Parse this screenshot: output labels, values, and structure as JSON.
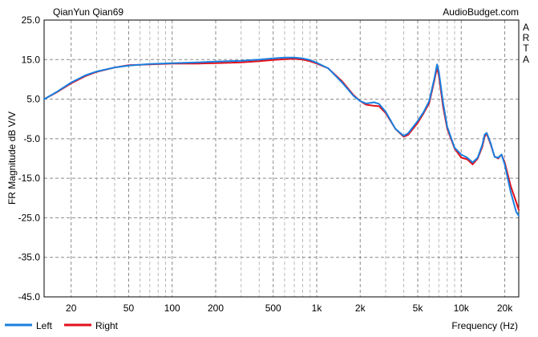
{
  "header": {
    "title": "QianYun Qian69",
    "brand": "AudioBudget.com"
  },
  "side_label": [
    "A",
    "R",
    "T",
    "A"
  ],
  "chart_data": {
    "type": "line",
    "title": "QianYun Qian69",
    "xlabel": "Frequency (Hz)",
    "ylabel": "FR Magnitude dB V/V",
    "x_scale": "log",
    "xlim": [
      13,
      25000
    ],
    "ylim": [
      -45,
      25
    ],
    "x_ticks": [
      {
        "value": 20,
        "label": "20"
      },
      {
        "value": 50,
        "label": "50"
      },
      {
        "value": 100,
        "label": "100"
      },
      {
        "value": 200,
        "label": "200"
      },
      {
        "value": 500,
        "label": "500"
      },
      {
        "value": 1000,
        "label": "1k"
      },
      {
        "value": 2000,
        "label": "2k"
      },
      {
        "value": 5000,
        "label": "5k"
      },
      {
        "value": 10000,
        "label": "10k"
      },
      {
        "value": 20000,
        "label": "20k"
      }
    ],
    "y_ticks": [
      {
        "value": 25,
        "label": "25.0"
      },
      {
        "value": 15,
        "label": "15.0"
      },
      {
        "value": 5,
        "label": "5.0"
      },
      {
        "value": -5,
        "label": "-5.0"
      },
      {
        "value": -15,
        "label": "-15.0"
      },
      {
        "value": -25,
        "label": "-25.0"
      },
      {
        "value": -35,
        "label": "-35.0"
      },
      {
        "value": -45,
        "label": "-45.0"
      }
    ],
    "grid": true,
    "legend_position": "bottom-left",
    "series": [
      {
        "name": "Right",
        "color": "#e0101c",
        "points": [
          [
            13,
            5.0
          ],
          [
            16,
            6.8
          ],
          [
            20,
            9.0
          ],
          [
            25,
            10.8
          ],
          [
            30,
            11.9
          ],
          [
            40,
            13.0
          ],
          [
            50,
            13.6
          ],
          [
            70,
            13.8
          ],
          [
            100,
            14.0
          ],
          [
            150,
            14.0
          ],
          [
            200,
            14.1
          ],
          [
            300,
            14.3
          ],
          [
            400,
            14.6
          ],
          [
            500,
            14.9
          ],
          [
            600,
            15.1
          ],
          [
            700,
            15.2
          ],
          [
            800,
            15.0
          ],
          [
            900,
            14.6
          ],
          [
            1000,
            14.0
          ],
          [
            1200,
            12.8
          ],
          [
            1500,
            9.5
          ],
          [
            1800,
            6.0
          ],
          [
            2000,
            4.5
          ],
          [
            2200,
            3.6
          ],
          [
            2500,
            3.3
          ],
          [
            2700,
            3.2
          ],
          [
            3000,
            1.5
          ],
          [
            3500,
            -2.5
          ],
          [
            4000,
            -4.5
          ],
          [
            4300,
            -4.0
          ],
          [
            5000,
            -1.0
          ],
          [
            5500,
            1.5
          ],
          [
            6000,
            4.0
          ],
          [
            6500,
            9.5
          ],
          [
            6800,
            13.0
          ],
          [
            7000,
            11.0
          ],
          [
            7500,
            3.0
          ],
          [
            8000,
            -2.5
          ],
          [
            9000,
            -7.5
          ],
          [
            10000,
            -9.8
          ],
          [
            11000,
            -10.2
          ],
          [
            12000,
            -11.5
          ],
          [
            13000,
            -10.0
          ],
          [
            14000,
            -7.0
          ],
          [
            14500,
            -4.5
          ],
          [
            15000,
            -3.7
          ],
          [
            16000,
            -6.5
          ],
          [
            17000,
            -9.5
          ],
          [
            18000,
            -10.0
          ],
          [
            19000,
            -9.0
          ],
          [
            20000,
            -11.0
          ],
          [
            22000,
            -17.0
          ],
          [
            24000,
            -21.0
          ],
          [
            25000,
            -23.0
          ]
        ]
      },
      {
        "name": "Left",
        "color": "#1a7fe0",
        "points": [
          [
            13,
            5.0
          ],
          [
            16,
            6.9
          ],
          [
            20,
            9.2
          ],
          [
            25,
            11.0
          ],
          [
            30,
            12.0
          ],
          [
            40,
            13.0
          ],
          [
            50,
            13.5
          ],
          [
            70,
            13.9
          ],
          [
            100,
            14.1
          ],
          [
            150,
            14.3
          ],
          [
            200,
            14.5
          ],
          [
            300,
            14.7
          ],
          [
            400,
            15.0
          ],
          [
            500,
            15.3
          ],
          [
            600,
            15.5
          ],
          [
            700,
            15.5
          ],
          [
            800,
            15.3
          ],
          [
            900,
            14.9
          ],
          [
            1000,
            14.2
          ],
          [
            1200,
            12.8
          ],
          [
            1500,
            9.2
          ],
          [
            1800,
            5.8
          ],
          [
            2000,
            4.5
          ],
          [
            2200,
            3.9
          ],
          [
            2500,
            4.2
          ],
          [
            2700,
            3.8
          ],
          [
            3000,
            1.8
          ],
          [
            3500,
            -2.5
          ],
          [
            4000,
            -4.3
          ],
          [
            4300,
            -3.6
          ],
          [
            5000,
            -0.5
          ],
          [
            5500,
            1.8
          ],
          [
            6000,
            4.5
          ],
          [
            6500,
            10.0
          ],
          [
            6800,
            13.8
          ],
          [
            7000,
            12.0
          ],
          [
            7500,
            4.0
          ],
          [
            8000,
            -2.0
          ],
          [
            9000,
            -7.3
          ],
          [
            10000,
            -9.0
          ],
          [
            11000,
            -9.8
          ],
          [
            12000,
            -11.0
          ],
          [
            13000,
            -9.8
          ],
          [
            14000,
            -6.5
          ],
          [
            14500,
            -4.0
          ],
          [
            15000,
            -3.5
          ],
          [
            16000,
            -6.2
          ],
          [
            17000,
            -9.6
          ],
          [
            18000,
            -9.8
          ],
          [
            19000,
            -9.0
          ],
          [
            20000,
            -11.5
          ],
          [
            22000,
            -18.5
          ],
          [
            24000,
            -23.5
          ],
          [
            25000,
            -24.5
          ]
        ]
      }
    ]
  }
}
